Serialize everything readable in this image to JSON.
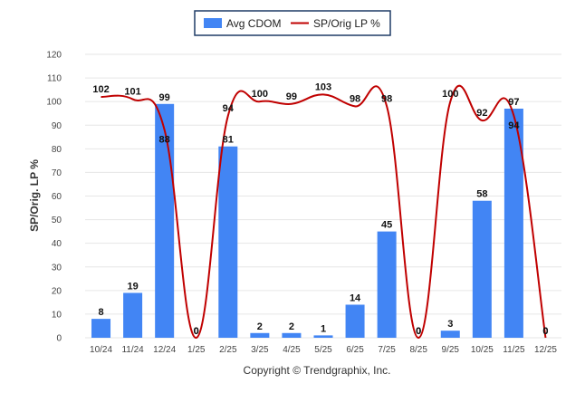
{
  "chart_data": {
    "type": "bar",
    "categories": [
      "10/24",
      "11/24",
      "12/24",
      "1/25",
      "2/25",
      "3/25",
      "4/25",
      "5/25",
      "6/25",
      "7/25",
      "8/25",
      "9/25",
      "10/25",
      "11/25",
      "12/25"
    ],
    "series": [
      {
        "name": "Avg CDOM",
        "type": "bar",
        "color": "#4285f4",
        "values": [
          8,
          19,
          99,
          0,
          81,
          2,
          2,
          1,
          14,
          45,
          0,
          3,
          58,
          97,
          0
        ]
      },
      {
        "name": "SP/Orig LP %",
        "type": "line",
        "color": "#c00000",
        "values": [
          102,
          101,
          88,
          0,
          94,
          100,
          99,
          103,
          98,
          98,
          0,
          100,
          92,
          94,
          0
        ]
      }
    ],
    "ylabel": "SP/Orig. LP %",
    "xlabel": "",
    "ylim": [
      0,
      120
    ],
    "yticks": [
      0,
      10,
      20,
      30,
      40,
      50,
      60,
      70,
      80,
      90,
      100,
      110,
      120
    ],
    "grid": true,
    "legend": "top-center",
    "footer": "Copyright © Trendgraphix, Inc."
  },
  "colors": {
    "bar": "#4285f4",
    "line": "#c00000",
    "grid": "#e6e6e6",
    "legend_border": "#1f3b66"
  }
}
